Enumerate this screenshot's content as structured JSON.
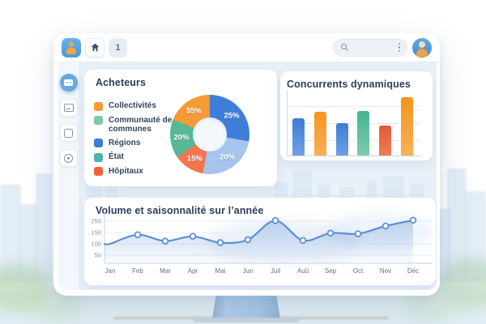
{
  "topbar": {
    "tab_label": "1",
    "search_placeholder": ""
  },
  "sidebar": {
    "items": [
      {
        "name": "dashboard",
        "active": true
      },
      {
        "name": "mail",
        "active": false
      },
      {
        "name": "square",
        "active": false
      },
      {
        "name": "history",
        "active": false
      }
    ]
  },
  "cards": {
    "acheteurs_title": "Acheteurs",
    "concurrents_title": "Concurrents dynamiques",
    "volume_title": "Volume et saisonnalité sur l’année"
  },
  "colors": {
    "accent_blue": "#3D7CD4",
    "accent_orange": "#F5941F",
    "accent_green": "#4DB896",
    "accent_red": "#E2583C",
    "line_blue": "#5B8FD6"
  },
  "chart_data": [
    {
      "id": "acheteurs",
      "type": "pie",
      "title": "Acheteurs",
      "donut": true,
      "legend_position": "left",
      "segments": [
        {
          "value": 25,
          "label": "25%",
          "color": "#3E7ED8",
          "start_deg": 0,
          "end_deg": 100,
          "label_deg": 50
        },
        {
          "value": 20,
          "label": "20%",
          "color": "#A6C4EE",
          "start_deg": 100,
          "end_deg": 190,
          "label_deg": 142
        },
        {
          "value": 15,
          "label": "15%",
          "color": "#F4764E",
          "start_deg": 190,
          "end_deg": 235,
          "label_deg": 212
        },
        {
          "value": 20,
          "label": "20%",
          "color": "#56B894",
          "start_deg": 235,
          "end_deg": 292,
          "label_deg": 263
        },
        {
          "value": 35,
          "label": "35%",
          "color": "#F59A35",
          "start_deg": 292,
          "end_deg": 360,
          "label_deg": 326
        }
      ],
      "legend": [
        {
          "label": "Collectivités",
          "color": "#F59A35"
        },
        {
          "label": "Communauté de communes",
          "color": "#7EC9A2"
        },
        {
          "label": "Régions",
          "color": "#3D7CD4"
        },
        {
          "label": "État",
          "color": "#4DB2A8"
        },
        {
          "label": "Hôpitaux",
          "color": "#F2613D"
        }
      ]
    },
    {
      "id": "concurrents",
      "type": "bar",
      "title": "Concurrents dynamiques",
      "categories": [
        "",
        "",
        "",
        "",
        "",
        ""
      ],
      "values": [
        64,
        75,
        56,
        76,
        51,
        100
      ],
      "ylim": [
        0,
        100
      ],
      "grid": true,
      "bar_colors": [
        {
          "top": "#3D7CD4",
          "bottom": "#6FA0E4"
        },
        {
          "top": "#F5941F",
          "bottom": "#F8B054"
        },
        {
          "top": "#3D7CD4",
          "bottom": "#6FA0E4"
        },
        {
          "top": "#45B58E",
          "bottom": "#7BCCAD"
        },
        {
          "top": "#E2583C",
          "bottom": "#EF7D55"
        },
        {
          "top": "#F5941F",
          "bottom": "#F8B054"
        }
      ]
    },
    {
      "id": "volume",
      "type": "line",
      "title": "Volume et saisonnalité sur l’année",
      "x": [
        "Jan",
        "Feb",
        "Mar",
        "Apr",
        "Mai",
        "Jun",
        "Juil",
        "Auû",
        "Sep",
        "Oct",
        "Nov",
        "Déc"
      ],
      "values": [
        100,
        140,
        112,
        133,
        105,
        118,
        255,
        115,
        147,
        144,
        207,
        258
      ],
      "yticks": [
        50,
        100,
        150,
        250
      ],
      "marker_from_index": 1,
      "grid": true,
      "line_color": "#5B8FD6",
      "marker_fill": "#FFFFFF",
      "area_top_color": "rgba(123,160,216,0.42)",
      "area_bottom_color": "rgba(123,160,216,0.04)"
    }
  ]
}
